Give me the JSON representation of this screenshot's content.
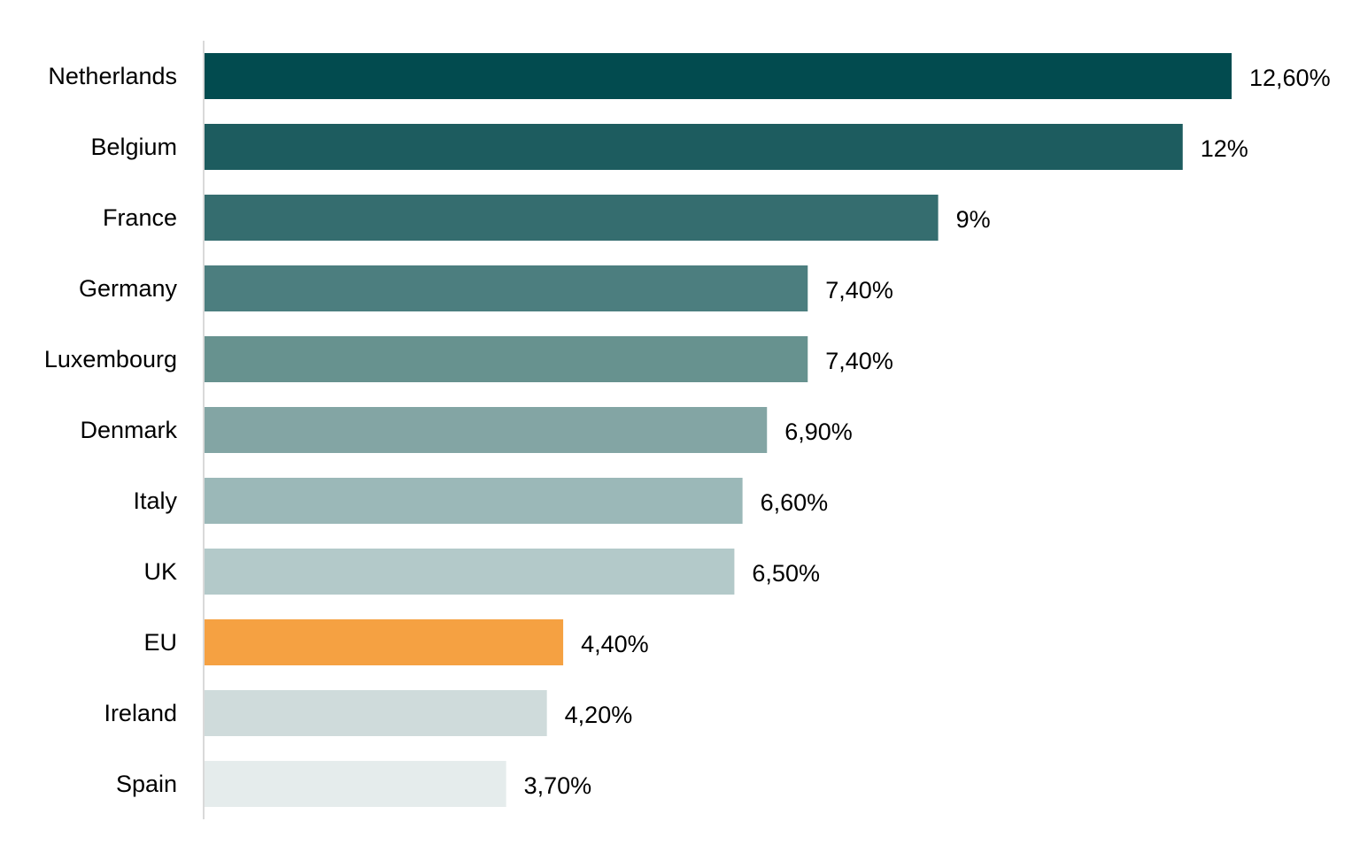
{
  "chart_data": {
    "type": "bar",
    "orientation": "horizontal",
    "categories": [
      "Netherlands",
      "Belgium",
      "France",
      "Germany",
      "Luxembourg",
      "Denmark",
      "Italy",
      "UK",
      "EU",
      "Ireland",
      "Spain"
    ],
    "values": [
      12.6,
      12.0,
      9.0,
      7.4,
      7.4,
      6.9,
      6.6,
      6.5,
      4.4,
      4.2,
      3.7
    ],
    "value_labels": [
      "12,60%",
      "12%",
      "9%",
      "7,40%",
      "7,40%",
      "6,90%",
      "6,60%",
      "6,50%",
      "4,40%",
      "4,20%",
      "3,70%"
    ],
    "colors": [
      "#024b4f",
      "#1d5c5f",
      "#356d6f",
      "#4c7e7f",
      "#67928f",
      "#83a5a4",
      "#9bb8b8",
      "#b3c9c9",
      "#f5a142",
      "#cfdbdb",
      "#e5ecec"
    ],
    "xlim": [
      0,
      12.6
    ],
    "grid": false,
    "legend": "none"
  }
}
